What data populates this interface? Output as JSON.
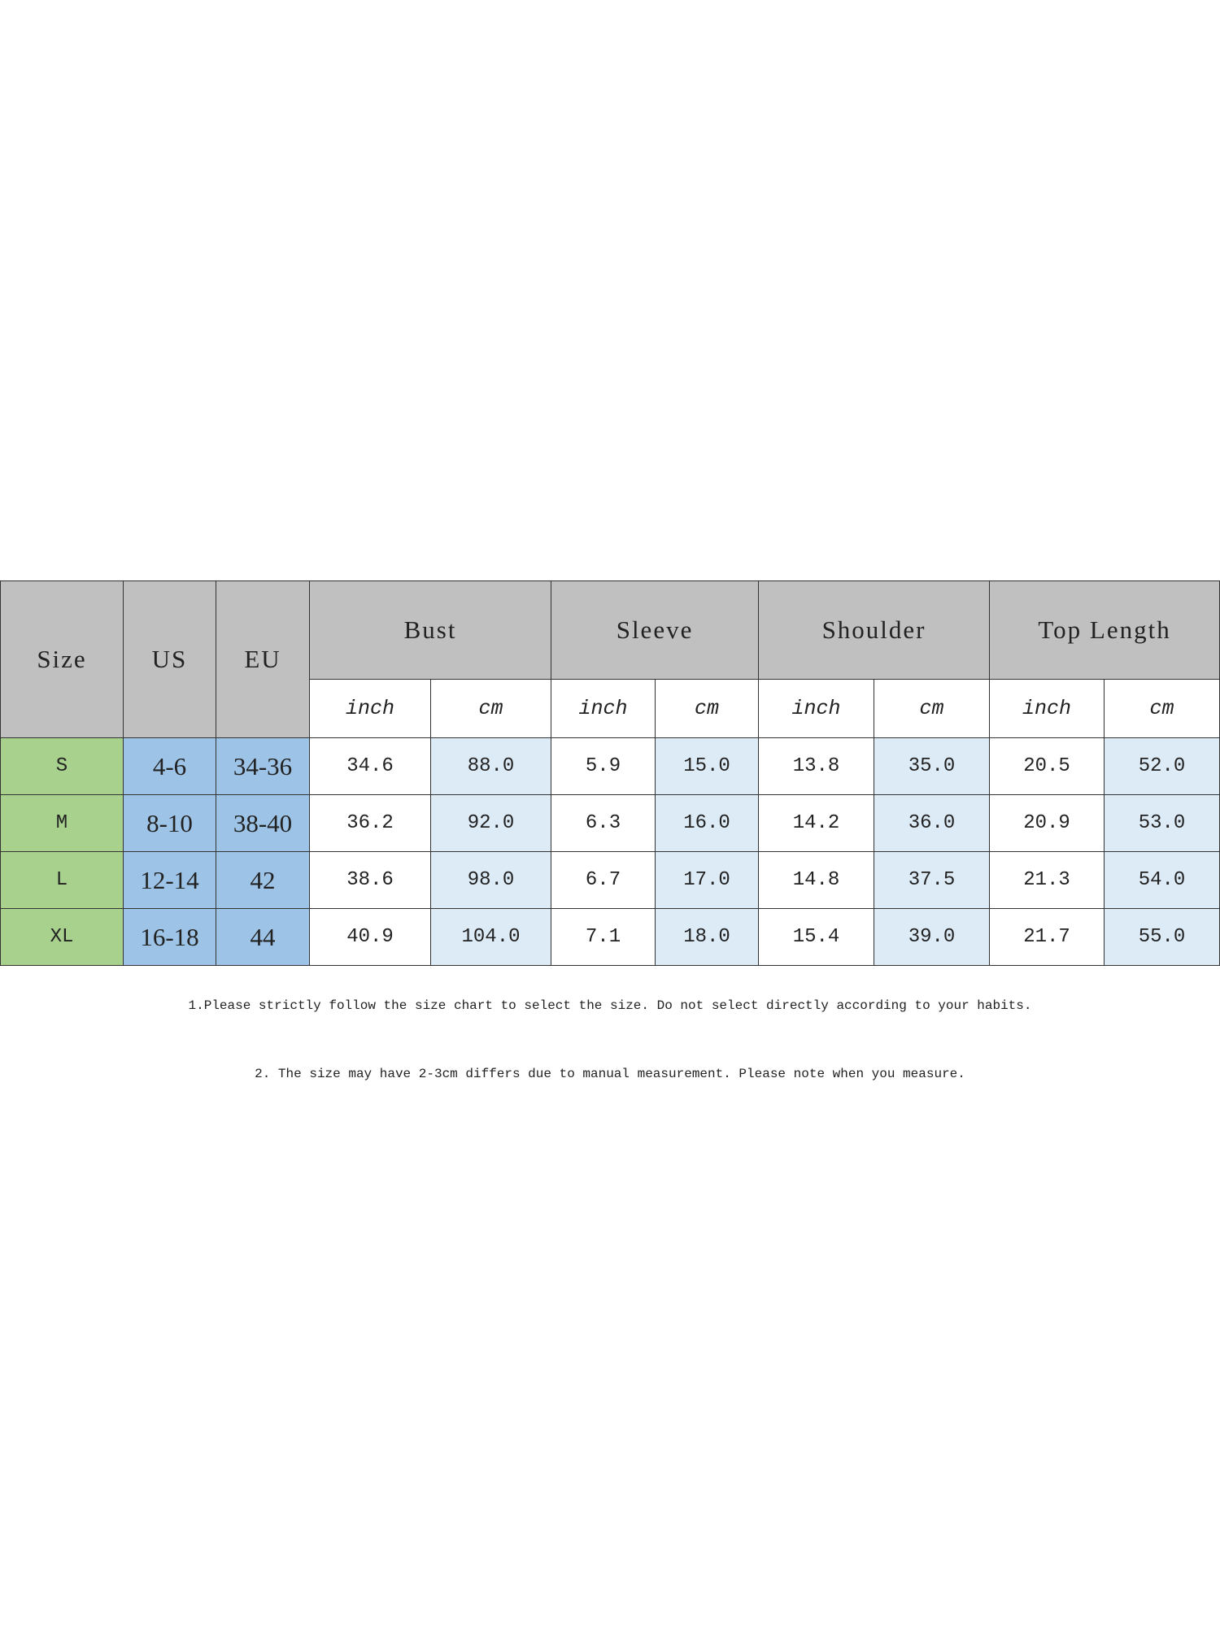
{
  "table": {
    "headers": {
      "size": "Size",
      "us": "US",
      "eu": "EU",
      "groups": [
        {
          "label": "Bust",
          "units": [
            "inch",
            "cm"
          ]
        },
        {
          "label": "Sleeve",
          "units": [
            "inch",
            "cm"
          ]
        },
        {
          "label": "Shoulder",
          "units": [
            "inch",
            "cm"
          ]
        },
        {
          "label": "Top Length",
          "units": [
            "inch",
            "cm"
          ]
        }
      ]
    },
    "rows": [
      [
        "S",
        "4-6",
        "34-36",
        "34.6",
        "88.0",
        "5.9",
        "15.0",
        "13.8",
        "35.0",
        "20.5",
        "52.0"
      ],
      [
        "M",
        "8-10",
        "38-40",
        "36.2",
        "92.0",
        "6.3",
        "16.0",
        "14.2",
        "36.0",
        "20.9",
        "53.0"
      ],
      [
        "L",
        "12-14",
        "42",
        "38.6",
        "98.0",
        "6.7",
        "17.0",
        "14.8",
        "37.5",
        "21.3",
        "54.0"
      ],
      [
        "XL",
        "16-18",
        "44",
        "40.9",
        "104.0",
        "7.1",
        "18.0",
        "15.4",
        "39.0",
        "21.7",
        "55.0"
      ]
    ]
  },
  "notes": [
    "1.Please strictly follow the size chart to select the size. Do not select directly according to your habits.",
    "2. The size may have 2-3cm differs due to manual measurement. Please note when you measure."
  ]
}
